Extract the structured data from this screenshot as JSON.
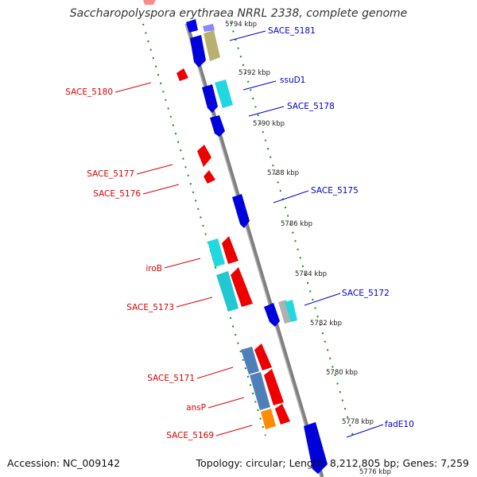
{
  "title": "Saccharopolyspora erythraea NRRL 2338, complete genome",
  "accession": "Accession: NC_009142",
  "summary": "Topology: circular; Length: 8,212,805 bp; Genes: 7,259",
  "colors": {
    "backbone": "#7f7f7f",
    "forward_label": "#0000cc",
    "reverse_label": "#dd0000",
    "tick": "#1a8a1a"
  },
  "scale_labels": [
    {
      "text": "5794 kbp",
      "kbp": 5794
    },
    {
      "text": "5792 kbp",
      "kbp": 5792
    },
    {
      "text": "5790 kbp",
      "kbp": 5790
    },
    {
      "text": "5788 kbp",
      "kbp": 5788
    },
    {
      "text": "5786 kbp",
      "kbp": 5786
    },
    {
      "text": "5784 kbp",
      "kbp": 5784
    },
    {
      "text": "5782 kbp",
      "kbp": 5782
    },
    {
      "text": "5780 kbp",
      "kbp": 5780
    },
    {
      "text": "5778 kbp",
      "kbp": 5778
    },
    {
      "text": "5776 kbp",
      "kbp": 5776
    }
  ],
  "gene_labels_forward": [
    "SACE_5181",
    "ssuD1",
    "SACE_5178",
    "SACE_5175",
    "SACE_5172",
    "fadE10"
  ],
  "gene_labels_reverse": [
    "SACE_5180",
    "SACE_5177",
    "SACE_5176",
    "iroB",
    "SACE_5173",
    "SACE_5171",
    "ansP",
    "SACE_5169"
  ]
}
